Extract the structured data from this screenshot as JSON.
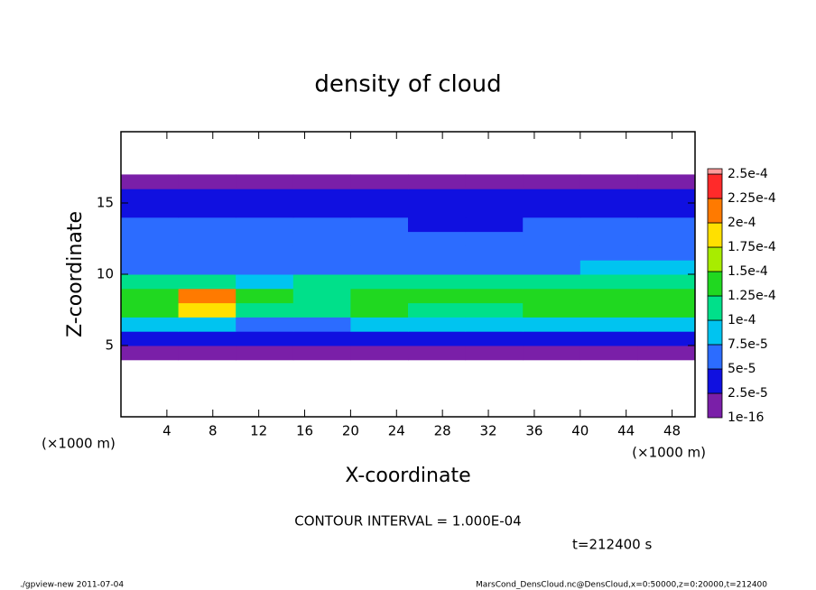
{
  "chart_data": {
    "type": "heatmap",
    "title": "density of cloud",
    "x_label": "X-coordinate",
    "y_label": "Z-coordinate",
    "x_unit_left": "(×1000 m)",
    "x_unit_right": "(×1000 m)",
    "contour_note": "CONTOUR INTERVAL = 1.000E-04",
    "time_label": "t=212400 s",
    "footer_left": "./gpview-new  2011-07-04",
    "footer_right": "MarsCond_DensCloud.nc@DensCloud,x=0:50000,z=0:20000,t=212400",
    "xlim": [
      0,
      50
    ],
    "ylim": [
      0,
      20
    ],
    "xticks": [
      4,
      8,
      12,
      16,
      20,
      24,
      28,
      32,
      36,
      40,
      44,
      48
    ],
    "yticks": [
      5,
      10,
      15
    ],
    "x": [
      2.5,
      7.5,
      12.5,
      17.5,
      22.5,
      27.5,
      32.5,
      37.5,
      42.5,
      47.5
    ],
    "y": [
      4.5,
      5.5,
      6.5,
      7.5,
      8.5,
      9.5,
      10.5,
      11.5,
      12.5,
      13.5,
      14.5,
      15.5,
      16.5
    ],
    "values": [
      [
        1e-05,
        1e-05,
        1e-05,
        1e-05,
        1e-05,
        1e-05,
        1e-05,
        1e-05,
        1e-05,
        1e-05
      ],
      [
        4e-05,
        4e-05,
        4e-05,
        3.5e-05,
        4e-05,
        4e-05,
        4e-05,
        3.5e-05,
        4e-05,
        4e-05
      ],
      [
        8e-05,
        9e-05,
        7e-05,
        7e-05,
        8e-05,
        8e-05,
        7.5e-05,
        8e-05,
        8e-05,
        9e-05
      ],
      [
        0.00013,
        0.00018,
        0.00012,
        0.00011,
        0.00013,
        0.00012,
        0.00012,
        0.000125,
        0.00013,
        0.00013
      ],
      [
        0.00014,
        0.00021,
        0.00013,
        0.00012,
        0.000145,
        0.000135,
        0.00013,
        0.00014,
        0.000135,
        0.00014
      ],
      [
        0.000105,
        0.00011,
        9e-05,
        0.0001,
        0.000105,
        0.0001,
        0.0001,
        0.000105,
        0.00011,
        0.00011
      ],
      [
        7e-05,
        7e-05,
        6.5e-05,
        7e-05,
        7e-05,
        6.5e-05,
        7e-05,
        7e-05,
        7.5e-05,
        8e-05
      ],
      [
        6e-05,
        6e-05,
        6e-05,
        6e-05,
        6e-05,
        5.5e-05,
        6e-05,
        6e-05,
        6e-05,
        6.5e-05
      ],
      [
        5.5e-05,
        5.5e-05,
        5.5e-05,
        5.5e-05,
        5.5e-05,
        5e-05,
        5e-05,
        5.5e-05,
        5.5e-05,
        5.5e-05
      ],
      [
        5e-05,
        5e-05,
        5e-05,
        5e-05,
        5e-05,
        4e-05,
        4e-05,
        5e-05,
        5e-05,
        5e-05
      ],
      [
        4.5e-05,
        4.5e-05,
        4.5e-05,
        4.5e-05,
        4.5e-05,
        4e-05,
        4e-05,
        4.5e-05,
        4.5e-05,
        4.5e-05
      ],
      [
        3e-05,
        3e-05,
        3e-05,
        3e-05,
        3e-05,
        3e-05,
        3e-05,
        3e-05,
        3e-05,
        3e-05
      ],
      [
        1e-05,
        1e-05,
        1e-05,
        1e-05,
        1e-05,
        1e-05,
        1e-05,
        1e-05,
        1e-05,
        1e-05
      ]
    ],
    "levels": [
      {
        "value": 1e-16,
        "label": "1e-16"
      },
      {
        "value": 2.5e-05,
        "label": "2.5e-5"
      },
      {
        "value": 5e-05,
        "label": "5e-5"
      },
      {
        "value": 7.5e-05,
        "label": "7.5e-5"
      },
      {
        "value": 0.0001,
        "label": "1e-4"
      },
      {
        "value": 0.000125,
        "label": "1.25e-4"
      },
      {
        "value": 0.00015,
        "label": "1.5e-4"
      },
      {
        "value": 0.000175,
        "label": "1.75e-4"
      },
      {
        "value": 0.0002,
        "label": "2e-4"
      },
      {
        "value": 0.000225,
        "label": "2.25e-4"
      },
      {
        "value": 0.00025,
        "label": "2.5e-4"
      }
    ],
    "colors": [
      "#7a1fa8",
      "#1010e0",
      "#2c6cff",
      "#00c4f0",
      "#00e08a",
      "#20d820",
      "#a8ec00",
      "#ffe000",
      "#ff7a00",
      "#ff2a2a",
      "#ff9a9a"
    ]
  }
}
